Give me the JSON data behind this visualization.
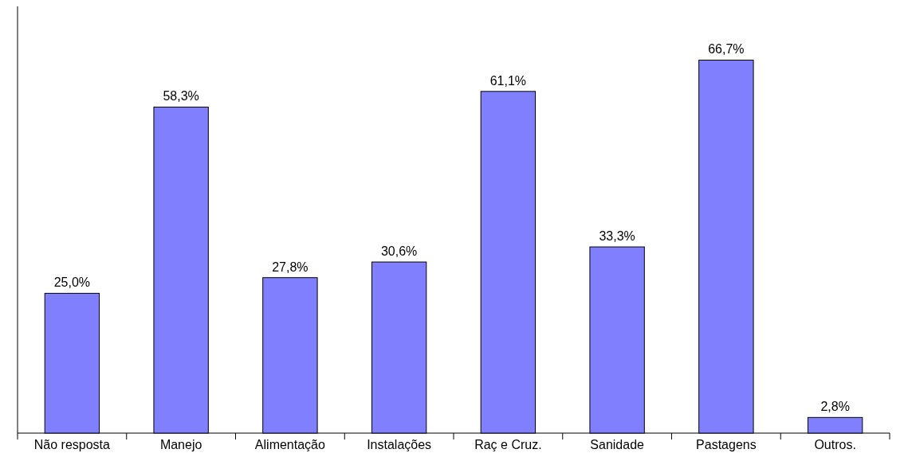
{
  "chart_data": {
    "type": "bar",
    "categories": [
      "Não resposta",
      "Manejo",
      "Alimentação",
      "Instalações",
      "Raç e Cruz.",
      "Sanidade",
      "Pastagens",
      "Outros."
    ],
    "values": [
      25.0,
      58.3,
      27.8,
      30.6,
      61.1,
      33.3,
      66.7,
      2.8
    ],
    "value_labels": [
      "25,0%",
      "58,3%",
      "27,8%",
      "30,6%",
      "61,1%",
      "33,3%",
      "66,7%",
      "2,8%"
    ],
    "color": "#8080ff"
  }
}
